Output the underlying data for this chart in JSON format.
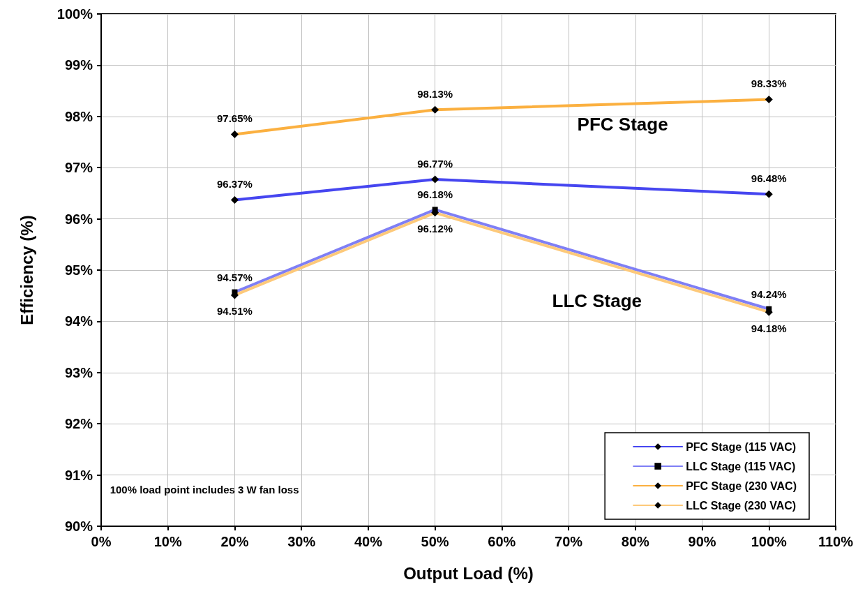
{
  "chart_data": {
    "type": "line",
    "xlabel": "Output Load (%)",
    "ylabel": "Efficiency (%)",
    "x": [
      20,
      50,
      100
    ],
    "series": [
      {
        "name": "PFC Stage (115 VAC)",
        "color": "#4646f0",
        "marker": "diamond",
        "values": [
          96.37,
          96.77,
          96.48
        ],
        "value_labels": [
          "96.37%",
          "96.77%",
          "96.48%"
        ]
      },
      {
        "name": "LLC Stage (115 VAC)",
        "color": "#7f7ff5",
        "marker": "square",
        "values": [
          94.57,
          96.18,
          94.24
        ],
        "value_labels": [
          "94.57%",
          "96.18%",
          "94.24%"
        ]
      },
      {
        "name": "PFC Stage (230 VAC)",
        "color": "#fbb040",
        "marker": "diamond",
        "values": [
          97.65,
          98.13,
          98.33
        ],
        "value_labels": [
          "97.65%",
          "98.13%",
          "98.33%"
        ]
      },
      {
        "name": "LLC Stage (230 VAC)",
        "color": "#fdc97a",
        "marker": "diamond",
        "values": [
          94.51,
          96.12,
          94.18
        ],
        "value_labels": [
          "94.51%",
          "96.12%",
          "94.18%"
        ]
      }
    ],
    "xlim": [
      0,
      110
    ],
    "xticks": [
      {
        "value": 0,
        "label": "0%"
      },
      {
        "value": 10,
        "label": "10%"
      },
      {
        "value": 20,
        "label": "20%"
      },
      {
        "value": 30,
        "label": "30%"
      },
      {
        "value": 40,
        "label": "40%"
      },
      {
        "value": 50,
        "label": "50%"
      },
      {
        "value": 60,
        "label": "60%"
      },
      {
        "value": 70,
        "label": "70%"
      },
      {
        "value": 80,
        "label": "80%"
      },
      {
        "value": 90,
        "label": "90%"
      },
      {
        "value": 100,
        "label": "100%"
      },
      {
        "value": 110,
        "label": "110%"
      }
    ],
    "ylim": [
      90,
      100
    ],
    "yticks": [
      {
        "value": 90,
        "label": "90%"
      },
      {
        "value": 91,
        "label": "91%"
      },
      {
        "value": 92,
        "label": "92%"
      },
      {
        "value": 93,
        "label": "93%"
      },
      {
        "value": 94,
        "label": "94%"
      },
      {
        "value": 95,
        "label": "95%"
      },
      {
        "value": 96,
        "label": "96%"
      },
      {
        "value": 97,
        "label": "97%"
      },
      {
        "value": 98,
        "label": "98%"
      },
      {
        "value": 99,
        "label": "99%"
      },
      {
        "value": 100,
        "label": "100%"
      }
    ],
    "grid": true,
    "legend": "bottom right",
    "line_style": "solid",
    "annotations": [
      "PFC Stage",
      "LLC Stage",
      "100% load point includes 3 W fan loss"
    ]
  }
}
